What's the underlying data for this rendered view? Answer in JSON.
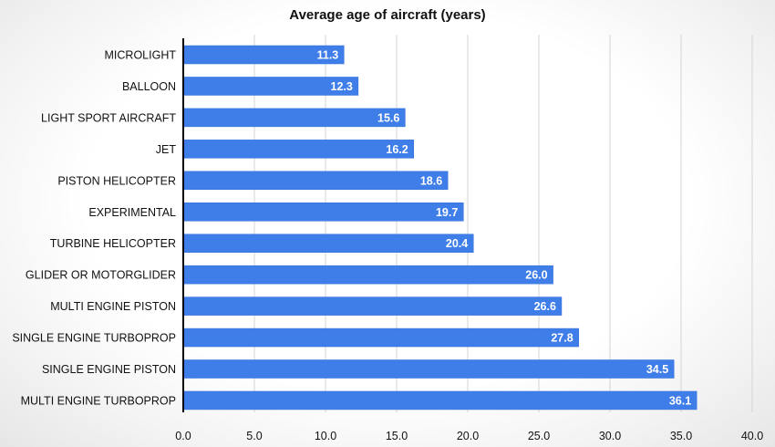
{
  "chart_data": {
    "type": "bar",
    "orientation": "horizontal",
    "title": "Average age of aircraft (years)",
    "xlabel": "",
    "ylabel": "",
    "categories": [
      "MICROLIGHT",
      "BALLOON",
      "LIGHT SPORT AIRCRAFT",
      "JET",
      "PISTON HELICOPTER",
      "EXPERIMENTAL",
      "TURBINE HELICOPTER",
      "GLIDER OR MOTORGLIDER",
      "MULTI ENGINE PISTON",
      "SINGLE ENGINE TURBOPROP",
      "SINGLE ENGINE PISTON",
      "MULTI ENGINE TURBOPROP"
    ],
    "values": [
      11.3,
      12.3,
      15.6,
      16.2,
      18.6,
      19.7,
      20.4,
      26.0,
      26.6,
      27.8,
      34.5,
      36.1
    ],
    "data_labels": [
      "11.3",
      "12.3",
      "15.6",
      "16.2",
      "18.6",
      "19.7",
      "20.4",
      "26.0",
      "26.6",
      "27.8",
      "34.5",
      "36.1"
    ],
    "xlim": [
      0,
      40
    ],
    "x_ticks": [
      0,
      5,
      10,
      15,
      20,
      25,
      30,
      35,
      40
    ],
    "x_tick_labels": [
      "0.0",
      "5.0",
      "10.0",
      "15.0",
      "20.0",
      "25.0",
      "30.0",
      "35.0",
      "40.0"
    ],
    "grid": "vertical",
    "legend": "none",
    "colors": {
      "bar": "#3f7ee8",
      "bar_edge": "#2f6fd8",
      "grid": "#d4d4d4",
      "axis": "#000000"
    }
  }
}
